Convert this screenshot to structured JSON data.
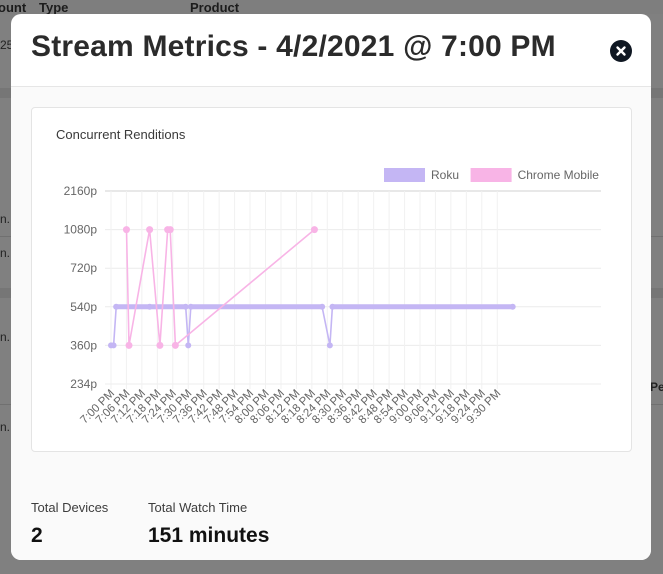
{
  "background": {
    "headers": [
      "ount",
      "Type",
      "Product"
    ],
    "fragments": [
      "25",
      "n.",
      "n.",
      "n.",
      "n.",
      "Pe"
    ]
  },
  "modal": {
    "title": "Stream Metrics - 4/2/2021 @ 7:00 PM",
    "close_icon": "close-icon"
  },
  "chart_data": {
    "type": "line",
    "title": "Concurrent Renditions",
    "xlabel": "",
    "ylabel": "",
    "y_categories": [
      "234p",
      "360p",
      "540p",
      "720p",
      "1080p",
      "2160p"
    ],
    "x_ticks": [
      "7:00 PM",
      "7:06 PM",
      "7:12 PM",
      "7:18 PM",
      "7:24 PM",
      "7:30 PM",
      "7:36 PM",
      "7:42 PM",
      "7:48 PM",
      "7:54 PM",
      "8:00 PM",
      "8:06 PM",
      "8:12 PM",
      "8:18 PM",
      "8:24 PM",
      "8:30 PM",
      "8:36 PM",
      "8:42 PM",
      "8:48 PM",
      "8:54 PM",
      "9:00 PM",
      "9:06 PM",
      "9:12 PM",
      "9:18 PM",
      "9:24 PM",
      "9:30 PM"
    ],
    "legend_position": "top-right",
    "grid": true,
    "series": [
      {
        "name": "Roku",
        "color": "#c4b6f4",
        "points": [
          [
            "7:00 PM",
            "360p"
          ],
          [
            "7:01 PM",
            "360p"
          ],
          [
            "7:02 PM",
            "540p"
          ],
          [
            "7:15 PM",
            "540p"
          ],
          [
            "7:29 PM",
            "540p"
          ],
          [
            "7:30 PM",
            "360p"
          ],
          [
            "7:31 PM",
            "540p"
          ],
          [
            "8:22 PM",
            "540p"
          ],
          [
            "8:25 PM",
            "360p"
          ],
          [
            "8:26 PM",
            "540p"
          ],
          [
            "9:36 PM",
            "540p"
          ]
        ]
      },
      {
        "name": "Chrome Mobile",
        "color": "#f8b4e6",
        "points": [
          [
            "7:06 PM",
            "1080p"
          ],
          [
            "7:07 PM",
            "360p"
          ],
          [
            "7:15 PM",
            "1080p"
          ],
          [
            "7:19 PM",
            "360p"
          ],
          [
            "7:22 PM",
            "1080p"
          ],
          [
            "7:23 PM",
            "1080p"
          ],
          [
            "7:25 PM",
            "360p"
          ],
          [
            "8:19 PM",
            "1080p"
          ]
        ]
      }
    ]
  },
  "stats": {
    "devices_label": "Total Devices",
    "devices_value": "2",
    "watch_label": "Total Watch Time",
    "watch_value": "151 minutes"
  }
}
